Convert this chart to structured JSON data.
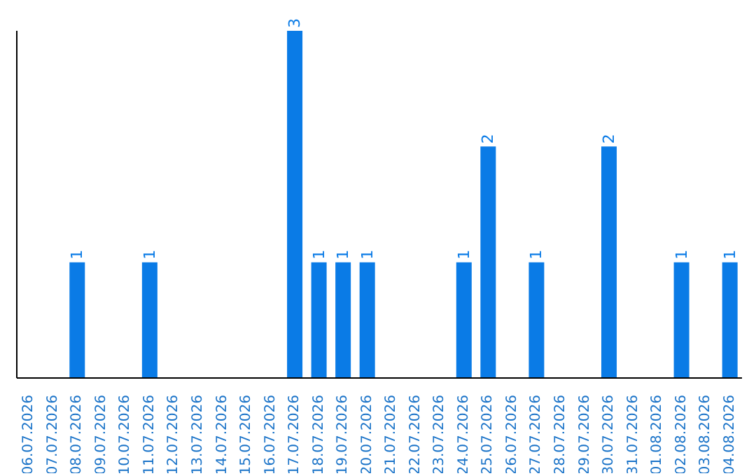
{
  "chart_data": {
    "type": "bar",
    "categories": [
      "06.07.2026",
      "07.07.2026",
      "08.07.2026",
      "09.07.2026",
      "10.07.2026",
      "11.07.2026",
      "12.07.2026",
      "13.07.2026",
      "14.07.2026",
      "15.07.2026",
      "16.07.2026",
      "17.07.2026",
      "18.07.2026",
      "19.07.2026",
      "20.07.2026",
      "21.07.2026",
      "22.07.2026",
      "23.07.2026",
      "24.07.2026",
      "25.07.2026",
      "26.07.2026",
      "27.07.2026",
      "28.07.2026",
      "29.07.2026",
      "30.07.2026",
      "31.07.2026",
      "01.08.2026",
      "02.08.2026",
      "03.08.2026",
      "04.08.2026"
    ],
    "values": [
      0,
      0,
      1,
      0,
      0,
      1,
      0,
      0,
      0,
      0,
      0,
      3,
      1,
      1,
      1,
      0,
      0,
      0,
      1,
      2,
      0,
      1,
      0,
      0,
      2,
      0,
      0,
      1,
      0,
      1
    ],
    "value_labels": [
      null,
      null,
      "1",
      null,
      null,
      "1",
      null,
      null,
      null,
      null,
      null,
      "3",
      "1",
      "1",
      "1",
      null,
      null,
      null,
      "1",
      "2",
      null,
      "1",
      null,
      null,
      "2",
      null,
      null,
      "1",
      null,
      "1"
    ],
    "color": "#0a7be6",
    "grid": false,
    "legend": false
  }
}
